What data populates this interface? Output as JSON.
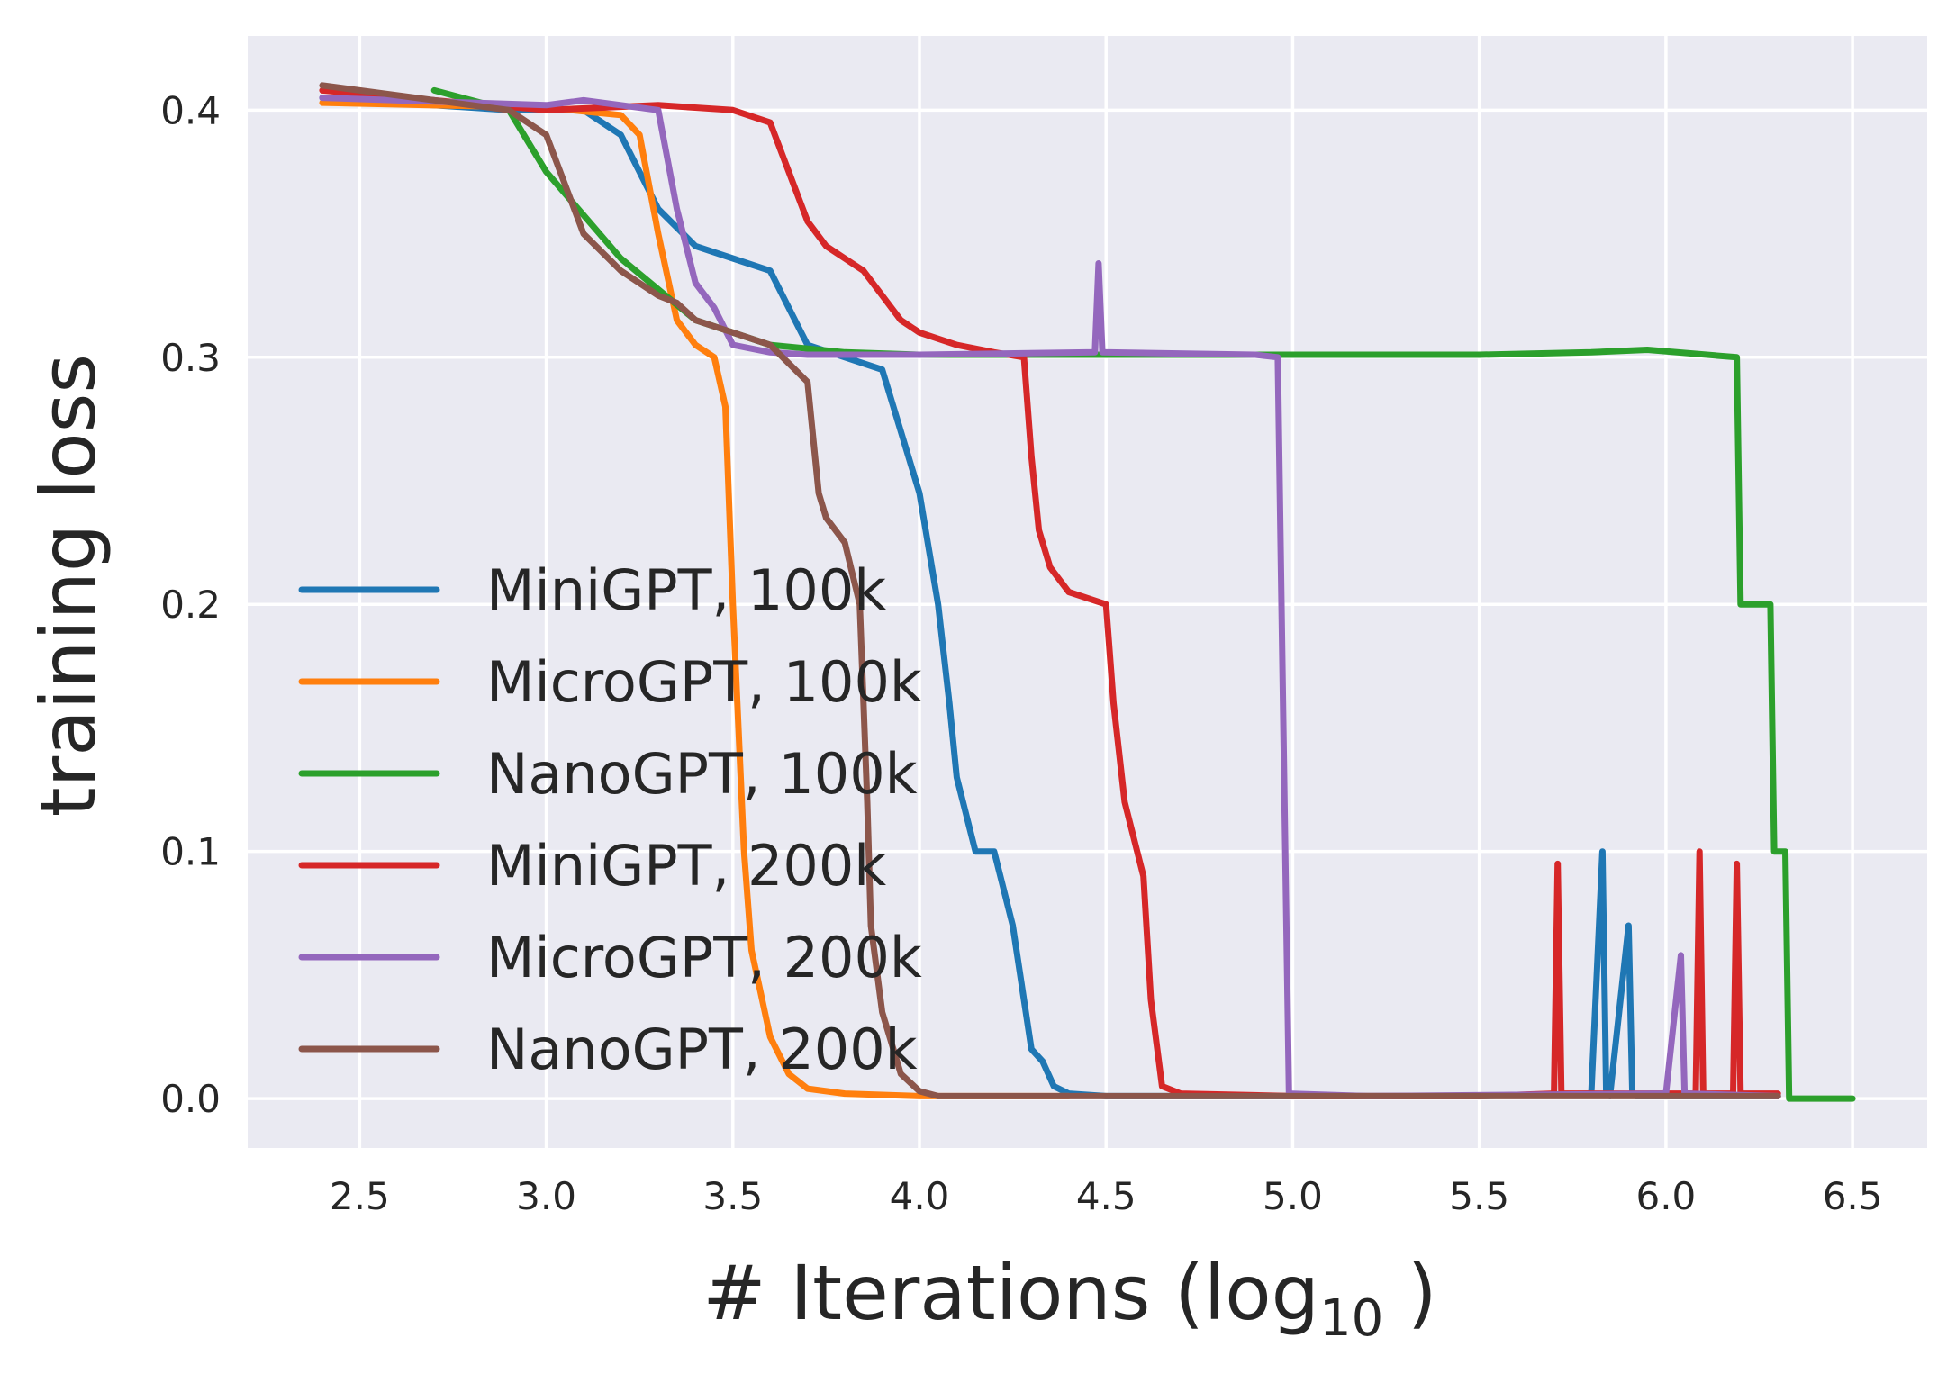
{
  "chart_data": {
    "type": "line",
    "title": "",
    "xlabel_main": "# Iterations (log",
    "xlabel_sub": "10",
    "xlabel_close": " )",
    "ylabel": "training loss",
    "xlim": [
      2.2,
      6.7
    ],
    "ylim": [
      -0.02,
      0.43
    ],
    "xticks": [
      2.5,
      3.0,
      3.5,
      4.0,
      4.5,
      5.0,
      5.5,
      6.0,
      6.5
    ],
    "xtick_labels": [
      "2.5",
      "3.0",
      "3.5",
      "4.0",
      "4.5",
      "5.0",
      "5.5",
      "6.0",
      "6.5"
    ],
    "yticks": [
      0.0,
      0.1,
      0.2,
      0.3,
      0.4
    ],
    "ytick_labels": [
      "0.0",
      "0.1",
      "0.2",
      "0.3",
      "0.4"
    ],
    "grid": true,
    "legend_position": "center-left",
    "series": [
      {
        "name": "MiniGPT, 100k",
        "color": "#1f77b4",
        "x": [
          2.4,
          2.9,
          3.1,
          3.2,
          3.3,
          3.4,
          3.5,
          3.6,
          3.65,
          3.7,
          3.8,
          3.9,
          3.95,
          4.0,
          4.05,
          4.08,
          4.1,
          4.15,
          4.2,
          4.25,
          4.3,
          4.33,
          4.36,
          4.4,
          4.5,
          5.0,
          5.5,
          5.8,
          5.83,
          5.84,
          5.85,
          5.9,
          5.91,
          5.92,
          6.3
        ],
        "y": [
          0.405,
          0.4,
          0.4,
          0.39,
          0.36,
          0.345,
          0.34,
          0.335,
          0.32,
          0.305,
          0.3,
          0.295,
          0.27,
          0.245,
          0.2,
          0.16,
          0.13,
          0.1,
          0.1,
          0.07,
          0.02,
          0.015,
          0.005,
          0.002,
          0.001,
          0.001,
          0.001,
          0.002,
          0.1,
          0.002,
          0.001,
          0.07,
          0.002,
          0.001,
          0.001
        ]
      },
      {
        "name": "MicroGPT, 100k",
        "color": "#ff7f0e",
        "x": [
          2.4,
          3.0,
          3.2,
          3.25,
          3.3,
          3.35,
          3.4,
          3.45,
          3.48,
          3.5,
          3.53,
          3.55,
          3.6,
          3.65,
          3.7,
          3.8,
          4.0,
          4.2,
          4.4
        ],
        "y": [
          0.403,
          0.401,
          0.398,
          0.39,
          0.35,
          0.315,
          0.305,
          0.3,
          0.28,
          0.2,
          0.1,
          0.06,
          0.025,
          0.01,
          0.004,
          0.002,
          0.001,
          0.001,
          0.001
        ]
      },
      {
        "name": "NanoGPT, 100k",
        "color": "#2ca02c",
        "x": [
          2.7,
          2.9,
          3.0,
          3.2,
          3.4,
          3.6,
          3.8,
          4.0,
          4.5,
          5.0,
          5.5,
          5.8,
          5.95,
          6.19,
          6.2,
          6.28,
          6.29,
          6.32,
          6.33,
          6.35,
          6.5
        ],
        "y": [
          0.408,
          0.4,
          0.375,
          0.34,
          0.315,
          0.305,
          0.302,
          0.301,
          0.301,
          0.301,
          0.301,
          0.302,
          0.303,
          0.3,
          0.2,
          0.2,
          0.1,
          0.1,
          0.0,
          0.0,
          0.0
        ]
      },
      {
        "name": "MiniGPT, 200k",
        "color": "#d62728",
        "x": [
          2.4,
          3.0,
          3.3,
          3.5,
          3.6,
          3.65,
          3.7,
          3.75,
          3.8,
          3.85,
          3.9,
          3.95,
          4.0,
          4.1,
          4.2,
          4.28,
          4.3,
          4.32,
          4.35,
          4.4,
          4.5,
          4.52,
          4.55,
          4.6,
          4.62,
          4.65,
          4.7,
          5.0,
          5.5,
          5.7,
          5.71,
          5.72,
          6.0,
          6.08,
          6.09,
          6.1,
          6.18,
          6.19,
          6.2,
          6.28,
          6.3
        ],
        "y": [
          0.408,
          0.4,
          0.402,
          0.4,
          0.395,
          0.375,
          0.355,
          0.345,
          0.34,
          0.335,
          0.325,
          0.315,
          0.31,
          0.305,
          0.302,
          0.3,
          0.26,
          0.23,
          0.215,
          0.205,
          0.2,
          0.16,
          0.12,
          0.09,
          0.04,
          0.005,
          0.002,
          0.001,
          0.001,
          0.002,
          0.095,
          0.002,
          0.002,
          0.002,
          0.1,
          0.002,
          0.002,
          0.095,
          0.002,
          0.002,
          0.002
        ]
      },
      {
        "name": "MicroGPT, 200k",
        "color": "#9467bd",
        "x": [
          2.4,
          3.0,
          3.1,
          3.3,
          3.35,
          3.4,
          3.45,
          3.5,
          3.6,
          3.7,
          4.0,
          4.47,
          4.48,
          4.49,
          4.9,
          4.96,
          4.97,
          4.99,
          5.2,
          6.0,
          6.04,
          6.05,
          6.3
        ],
        "y": [
          0.405,
          0.402,
          0.404,
          0.4,
          0.36,
          0.33,
          0.32,
          0.305,
          0.302,
          0.301,
          0.301,
          0.302,
          0.338,
          0.302,
          0.301,
          0.3,
          0.2,
          0.002,
          0.001,
          0.002,
          0.058,
          0.002,
          0.001
        ]
      },
      {
        "name": "NanoGPT, 200k",
        "color": "#8c564b",
        "x": [
          2.4,
          2.9,
          3.0,
          3.1,
          3.2,
          3.3,
          3.35,
          3.4,
          3.5,
          3.6,
          3.7,
          3.73,
          3.75,
          3.8,
          3.84,
          3.86,
          3.87,
          3.9,
          3.95,
          4.0,
          4.05,
          4.2,
          4.5,
          5.0,
          5.5,
          6.0,
          6.3
        ],
        "y": [
          0.41,
          0.4,
          0.39,
          0.35,
          0.335,
          0.325,
          0.322,
          0.315,
          0.31,
          0.305,
          0.29,
          0.245,
          0.235,
          0.225,
          0.2,
          0.12,
          0.07,
          0.035,
          0.01,
          0.003,
          0.001,
          0.001,
          0.001,
          0.001,
          0.001,
          0.001,
          0.001
        ]
      }
    ]
  }
}
